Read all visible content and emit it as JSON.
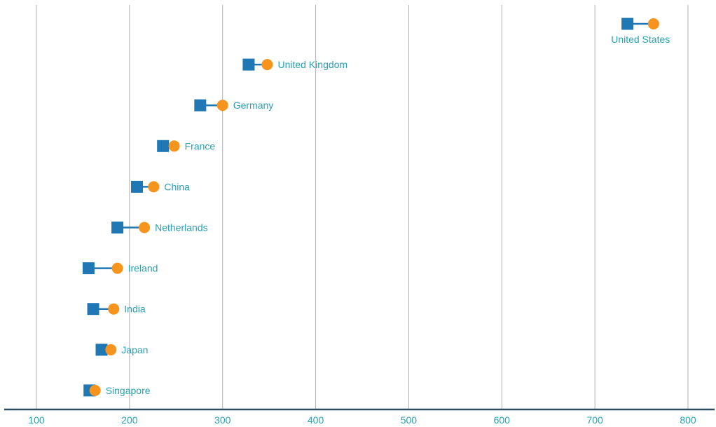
{
  "chart_data": {
    "type": "dumbbell",
    "title": "",
    "xlabel": "",
    "ylabel": "",
    "xlim": [
      100,
      800
    ],
    "x_ticks": [
      "100",
      "200",
      "300",
      "400",
      "500",
      "600",
      "700",
      "800"
    ],
    "grid": "vertical",
    "colors": {
      "start_marker": "#1f77b4",
      "end_marker": "#f7941d",
      "connector": "#1f77b4",
      "label": "#2aa1b3",
      "grid": "#b0b0b0",
      "axis": "#2f4f5f"
    },
    "categories": [
      "United States",
      "United Kingdom",
      "Germany",
      "France",
      "China",
      "Netherlands",
      "Ireland",
      "India",
      "Japan",
      "Singapore"
    ],
    "series": [
      {
        "values": [
          735,
          328,
          276,
          236,
          208,
          187,
          156,
          161,
          170,
          157
        ]
      },
      {
        "values": [
          763,
          348,
          300,
          248,
          226,
          216,
          187,
          183,
          180,
          163
        ]
      }
    ]
  }
}
